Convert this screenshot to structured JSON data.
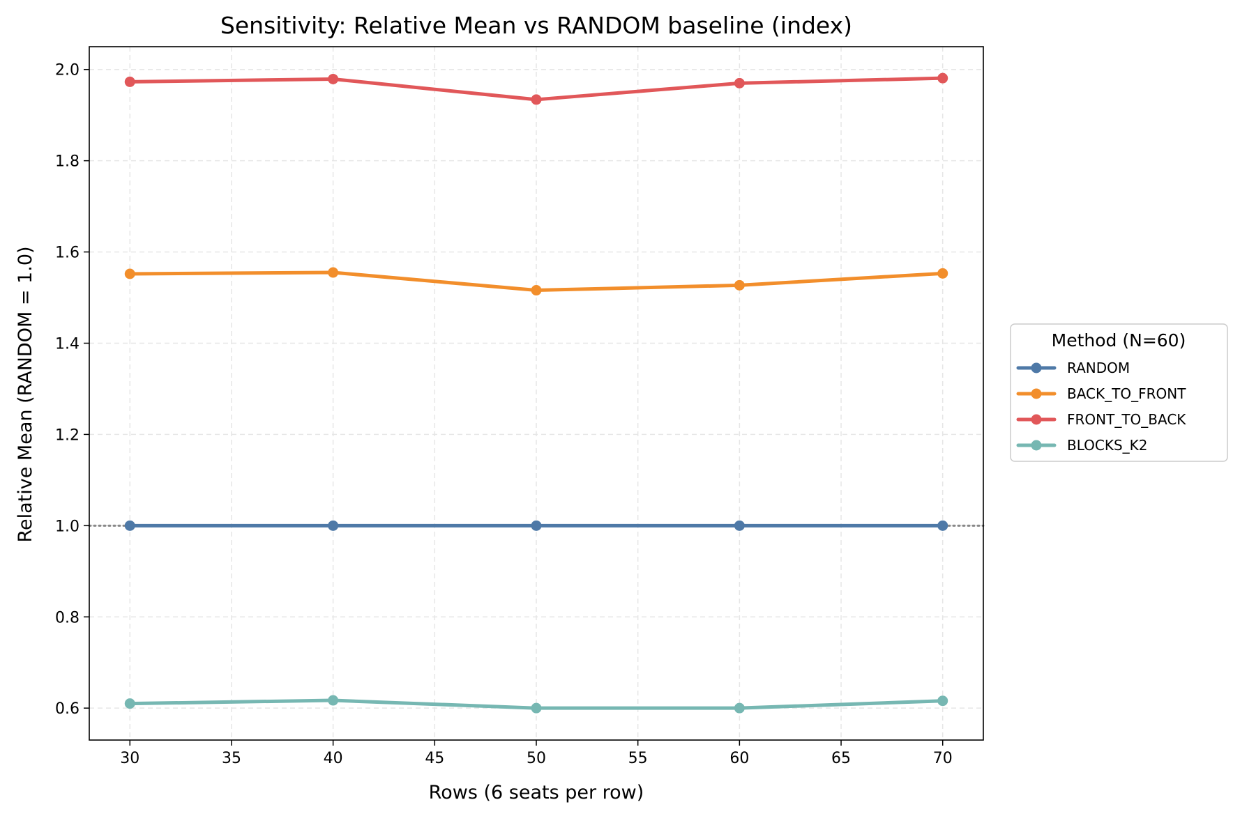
{
  "chart_data": {
    "type": "line",
    "title": "Sensitivity: Relative Mean vs RANDOM baseline (index)",
    "xlabel": "Rows (6 seats per row)",
    "ylabel": "Relative Mean (RANDOM = 1.0)",
    "x": [
      30,
      40,
      50,
      60,
      70
    ],
    "xlim": [
      28,
      72
    ],
    "ylim": [
      0.53,
      2.05
    ],
    "xticks": [
      30,
      35,
      40,
      45,
      50,
      55,
      60,
      65,
      70
    ],
    "yticks": [
      0.6,
      0.8,
      1.0,
      1.2,
      1.4,
      1.6,
      1.8,
      2.0
    ],
    "xtick_labels": [
      "30",
      "35",
      "40",
      "45",
      "50",
      "55",
      "60",
      "65",
      "70"
    ],
    "ytick_labels": [
      "0.6",
      "0.8",
      "1.0",
      "1.2",
      "1.4",
      "1.6",
      "1.8",
      "2.0"
    ],
    "grid": true,
    "reference_line": {
      "y": 1.0,
      "style": "dotted",
      "color": "#888888"
    },
    "legend": {
      "title": "Method (N=60)",
      "placement": "center-right-outside"
    },
    "series": [
      {
        "name": "RANDOM",
        "color": "#4e79a7",
        "values": [
          1.0,
          1.0,
          1.0,
          1.0,
          1.0
        ]
      },
      {
        "name": "BACK_TO_FRONT",
        "color": "#f28e2b",
        "values": [
          1.552,
          1.555,
          1.516,
          1.527,
          1.553
        ]
      },
      {
        "name": "FRONT_TO_BACK",
        "color": "#e15759",
        "values": [
          1.973,
          1.979,
          1.934,
          1.97,
          1.981
        ]
      },
      {
        "name": "BLOCKS_K2",
        "color": "#76b7b2",
        "values": [
          0.61,
          0.617,
          0.6,
          0.6,
          0.616
        ]
      }
    ]
  }
}
